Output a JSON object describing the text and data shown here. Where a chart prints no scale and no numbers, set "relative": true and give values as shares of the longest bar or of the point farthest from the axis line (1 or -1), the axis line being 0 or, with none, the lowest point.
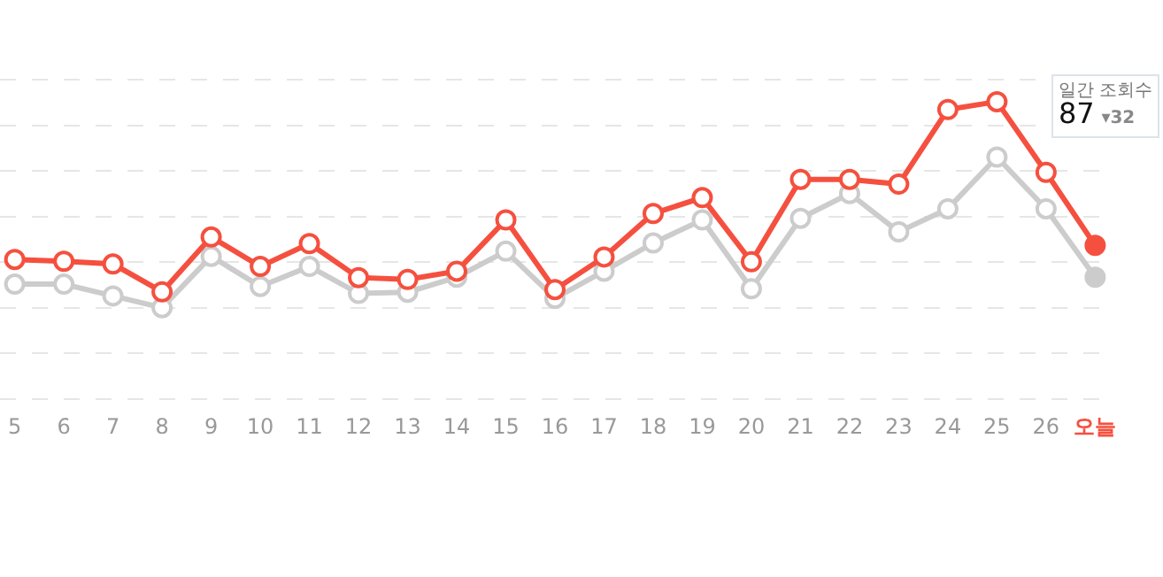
{
  "chart_data": {
    "type": "line",
    "relative": true,
    "categories": [
      "5",
      "6",
      "7",
      "8",
      "9",
      "10",
      "11",
      "12",
      "13",
      "14",
      "15",
      "16",
      "17",
      "18",
      "19",
      "20",
      "21",
      "22",
      "23",
      "24",
      "25",
      "26",
      "오늘"
    ],
    "series": [
      {
        "color": "#f5503f",
        "values": [
          0.234,
          0.225,
          0.212,
          0.077,
          0.343,
          0.2,
          0.311,
          0.146,
          0.137,
          0.177,
          0.426,
          0.088,
          0.246,
          0.457,
          0.534,
          0.223,
          0.623,
          0.623,
          0.6,
          0.962,
          1,
          0.657,
          0.302
        ]
      },
      {
        "color": "#cccccc",
        "values": [
          0.114,
          0.114,
          0.057,
          0,
          0.249,
          0.103,
          0.2,
          0.069,
          0.075,
          0.148,
          0.274,
          0.045,
          0.177,
          0.314,
          0.426,
          0.092,
          0.434,
          0.554,
          0.368,
          0.48,
          0.731,
          0.48,
          0.148
        ]
      }
    ],
    "annotations": [
      "일간 조회수",
      "87",
      "▾32"
    ],
    "grid": "y",
    "marker": "circle",
    "line_style": "solid"
  }
}
